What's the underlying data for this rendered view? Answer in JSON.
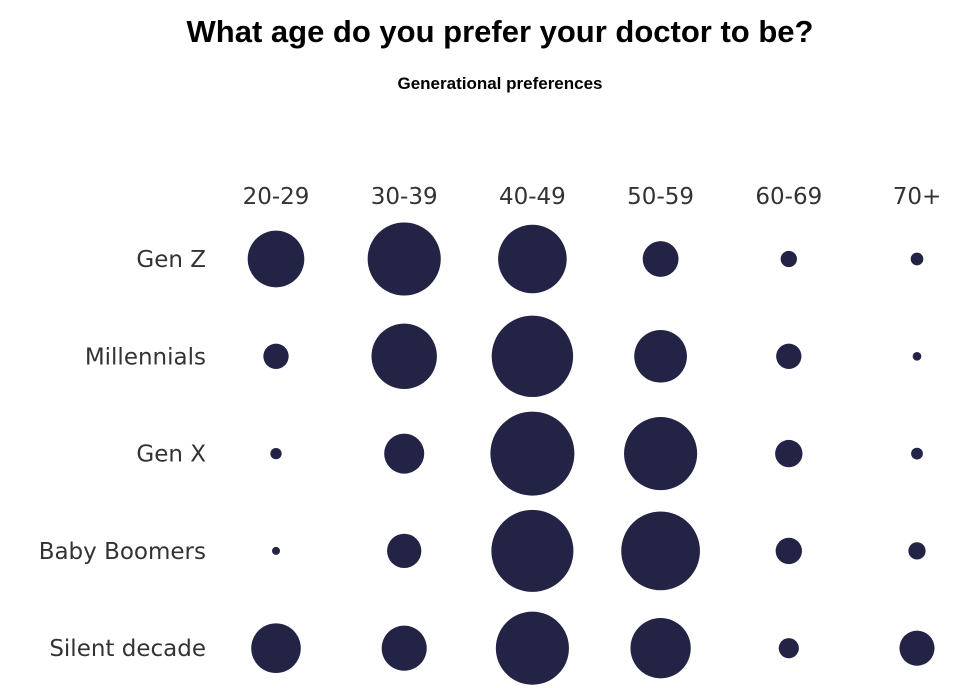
{
  "title": "What age do you prefer your doctor to be?",
  "subtitle": "Generational preferences",
  "chart_data": {
    "type": "bubble-grid",
    "title": "What age do you prefer your doctor to be?",
    "subtitle": "Generational preferences",
    "columns": [
      "20-29",
      "30-39",
      "40-49",
      "50-59",
      "60-69",
      "70+"
    ],
    "rows": [
      "Gen Z",
      "Millennials",
      "Gen X",
      "Baby Boomers",
      "Silent decade"
    ],
    "values": [
      [
        30,
        50,
        44,
        12,
        2.5,
        1.5
      ],
      [
        6,
        40,
        62,
        26,
        6,
        0.7
      ],
      [
        1.2,
        15,
        66,
        50,
        7,
        1.3
      ],
      [
        0.6,
        11,
        63,
        58,
        6.5,
        2.8
      ],
      [
        23,
        19,
        50,
        34,
        3.8,
        11.5
      ]
    ],
    "size_encoding": "area",
    "bubble_color": "#232346",
    "grid": false,
    "legend": "none"
  }
}
